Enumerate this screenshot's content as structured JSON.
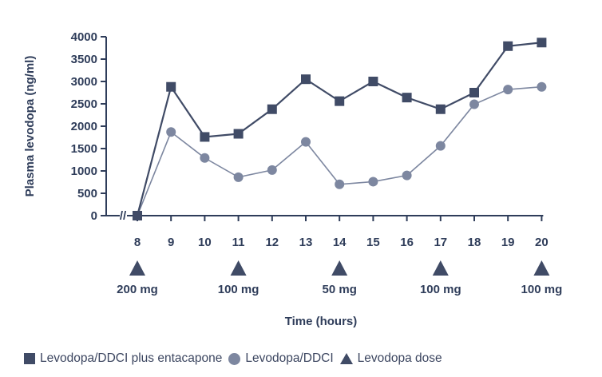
{
  "chart_data": {
    "type": "line",
    "x": [
      8,
      9,
      10,
      11,
      12,
      13,
      14,
      15,
      16,
      17,
      18,
      19,
      20
    ],
    "series": [
      {
        "name": "Levodopa/DDCI plus entacapone",
        "marker": "square",
        "color": "#404b66",
        "values": [
          0,
          2880,
          1760,
          1830,
          2380,
          3050,
          2560,
          3000,
          2640,
          2380,
          2750,
          3790,
          3870
        ]
      },
      {
        "name": "Levodopa/DDCI",
        "marker": "circle",
        "color": "#7d87a0",
        "values": [
          0,
          1870,
          1290,
          860,
          1020,
          1650,
          700,
          760,
          900,
          1560,
          2490,
          2820,
          2880
        ]
      }
    ],
    "doses": [
      {
        "x": 8,
        "label": "200 mg"
      },
      {
        "x": 11,
        "label": "100 mg"
      },
      {
        "x": 14,
        "label": "50 mg"
      },
      {
        "x": 17,
        "label": "100 mg"
      },
      {
        "x": 20,
        "label": "100 mg"
      }
    ],
    "xlabel": "Time (hours)",
    "ylabel": "Plasma levodopa (ng/ml)",
    "ylim": [
      0,
      4000
    ],
    "yticks": [
      0,
      500,
      1000,
      1500,
      2000,
      2500,
      3000,
      3500,
      4000
    ],
    "axis_break": "//",
    "grid": false,
    "legend_position": "bottom"
  },
  "legend": {
    "entacapone": "Levodopa/DDCI plus entacapone",
    "ddci": "Levodopa/DDCI",
    "dose": "Levodopa dose"
  }
}
